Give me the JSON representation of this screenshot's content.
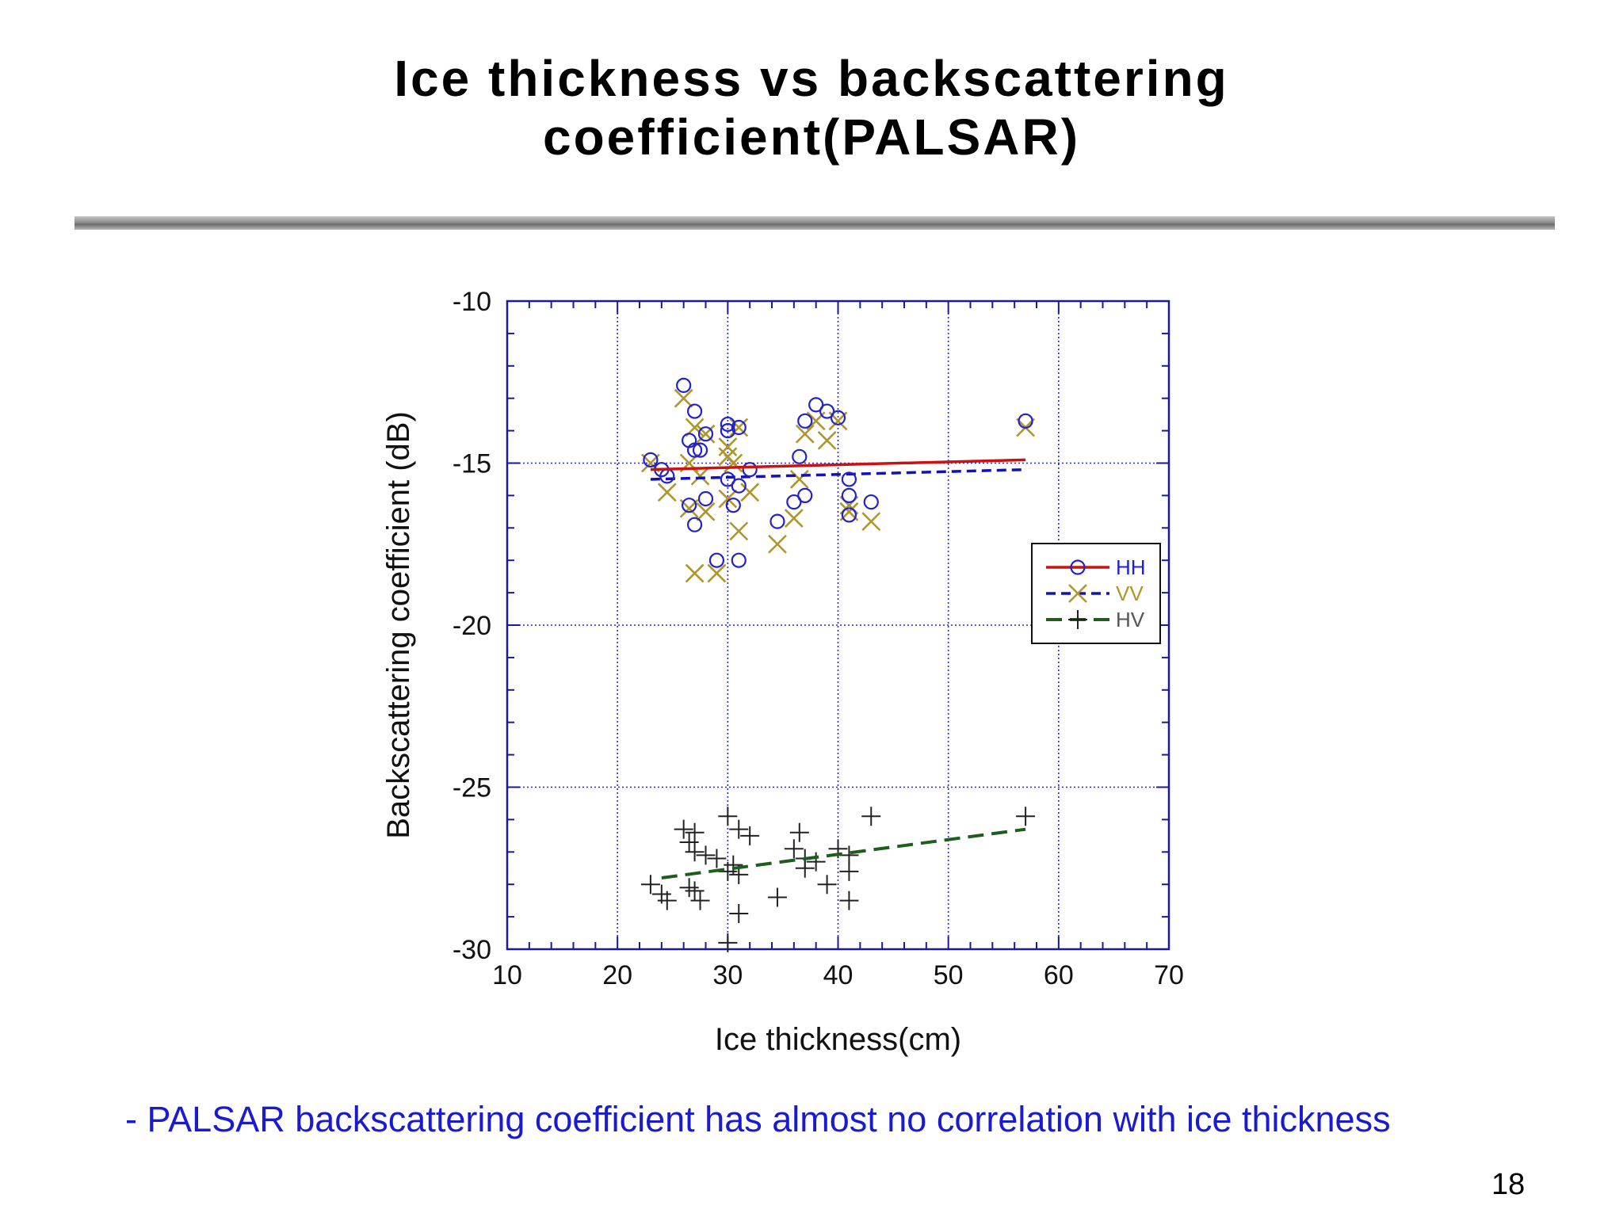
{
  "slide": {
    "title_line1": "Ice thickness vs backscattering",
    "title_line2": "coefficient(PALSAR)",
    "caption": "- PALSAR backscattering coefficient has almost no correlation with ice thickness",
    "page_number": "18"
  },
  "colors": {
    "axis": "#1a1a9a",
    "grid": "#2a2ac8",
    "HH_marker": "#2222cc",
    "HH_line": "#cc1111",
    "VV_marker": "#b0962a",
    "VV_line": "#1111bb",
    "HV_marker": "#222222",
    "HV_line": "#1d5e1d",
    "caption": "#1a1ad0"
  },
  "chart_data": {
    "type": "scatter",
    "title": "",
    "xlabel": "Ice thickness(cm)",
    "ylabel": "Backscattering coefficient (dB)",
    "xlim": [
      10,
      70
    ],
    "ylim": [
      -30,
      -10
    ],
    "xticks": [
      "10",
      "20",
      "30",
      "40",
      "50",
      "60",
      "70"
    ],
    "yticks": [
      "-10",
      "-15",
      "-20",
      "-25",
      "-30"
    ],
    "grid": true,
    "legend_position": "right",
    "series": [
      {
        "name": "HH",
        "marker": "circle",
        "line_style": "solid",
        "points": [
          [
            23,
            -14.9
          ],
          [
            24,
            -15.2
          ],
          [
            24.5,
            -15.4
          ],
          [
            26,
            -12.6
          ],
          [
            26.5,
            -14.3
          ],
          [
            26.5,
            -16.3
          ],
          [
            27,
            -13.4
          ],
          [
            27,
            -14.6
          ],
          [
            27,
            -16.9
          ],
          [
            27.5,
            -14.6
          ],
          [
            28,
            -14.1
          ],
          [
            28,
            -16.1
          ],
          [
            29,
            -18.0
          ],
          [
            30,
            -13.8
          ],
          [
            30,
            -14.0
          ],
          [
            30,
            -15.5
          ],
          [
            30.5,
            -16.3
          ],
          [
            31,
            -13.9
          ],
          [
            31,
            -15.7
          ],
          [
            31,
            -18.0
          ],
          [
            32,
            -15.2
          ],
          [
            34.5,
            -16.8
          ],
          [
            36,
            -16.2
          ],
          [
            36.5,
            -14.8
          ],
          [
            37,
            -13.7
          ],
          [
            37,
            -16.0
          ],
          [
            38,
            -13.2
          ],
          [
            39,
            -13.4
          ],
          [
            40,
            -13.6
          ],
          [
            41,
            -15.5
          ],
          [
            41,
            -16.0
          ],
          [
            41,
            -16.6
          ],
          [
            43,
            -16.2
          ],
          [
            57,
            -13.7
          ]
        ],
        "trend": [
          [
            23,
            -15.2
          ],
          [
            57,
            -14.9
          ]
        ]
      },
      {
        "name": "VV",
        "marker": "x",
        "line_style": "dashed",
        "points": [
          [
            23,
            -15.0
          ],
          [
            24.5,
            -15.9
          ],
          [
            26,
            -13.0
          ],
          [
            26.5,
            -15.0
          ],
          [
            26.5,
            -16.4
          ],
          [
            27,
            -13.9
          ],
          [
            27,
            -18.4
          ],
          [
            27.5,
            -15.4
          ],
          [
            28,
            -14.1
          ],
          [
            28,
            -16.5
          ],
          [
            29,
            -18.4
          ],
          [
            30,
            -14.5
          ],
          [
            30,
            -14.8
          ],
          [
            30,
            -16.1
          ],
          [
            30.5,
            -15.0
          ],
          [
            31,
            -13.9
          ],
          [
            31,
            -17.1
          ],
          [
            32,
            -15.9
          ],
          [
            34.5,
            -17.5
          ],
          [
            36,
            -16.7
          ],
          [
            36.5,
            -15.5
          ],
          [
            37,
            -14.1
          ],
          [
            38,
            -13.7
          ],
          [
            39,
            -14.3
          ],
          [
            40,
            -13.7
          ],
          [
            41,
            -16.3
          ],
          [
            41,
            -16.5
          ],
          [
            43,
            -16.8
          ],
          [
            57,
            -13.9
          ]
        ],
        "trend": [
          [
            23,
            -15.5
          ],
          [
            57,
            -15.2
          ]
        ]
      },
      {
        "name": "HV",
        "marker": "plus",
        "line_style": "long-dashed",
        "points": [
          [
            23,
            -28.0
          ],
          [
            24,
            -28.3
          ],
          [
            24.5,
            -28.5
          ],
          [
            26,
            -26.3
          ],
          [
            26.5,
            -26.7
          ],
          [
            26.5,
            -28.1
          ],
          [
            27,
            -26.4
          ],
          [
            27,
            -27.0
          ],
          [
            27,
            -28.2
          ],
          [
            27.5,
            -28.5
          ],
          [
            28,
            -27.1
          ],
          [
            29,
            -27.2
          ],
          [
            30,
            -25.9
          ],
          [
            30,
            -27.6
          ],
          [
            30,
            -29.8
          ],
          [
            30.5,
            -27.4
          ],
          [
            31,
            -26.3
          ],
          [
            31,
            -27.7
          ],
          [
            31,
            -28.9
          ],
          [
            32,
            -26.5
          ],
          [
            34.5,
            -28.4
          ],
          [
            36,
            -26.9
          ],
          [
            36.5,
            -26.4
          ],
          [
            37,
            -27.2
          ],
          [
            37,
            -27.5
          ],
          [
            38,
            -27.3
          ],
          [
            39,
            -28.0
          ],
          [
            40,
            -26.9
          ],
          [
            41,
            -27.1
          ],
          [
            41,
            -27.6
          ],
          [
            41,
            -28.5
          ],
          [
            43,
            -25.9
          ],
          [
            57,
            -25.9
          ]
        ],
        "trend": [
          [
            24,
            -27.8
          ],
          [
            57,
            -26.3
          ]
        ]
      }
    ]
  }
}
